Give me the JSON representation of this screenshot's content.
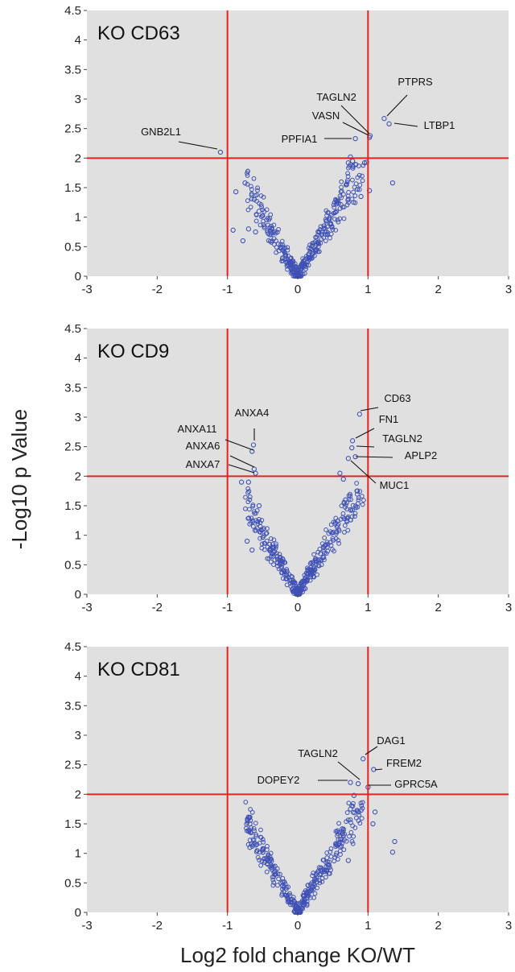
{
  "ylabel": "-Log10 p Value",
  "xlabel": "Log2 fold change KO/WT",
  "chart_data": [
    {
      "type": "scatter",
      "title": "KO CD63",
      "xlim": [
        -3,
        3
      ],
      "ylim": [
        0,
        4.5
      ],
      "x_ticks": [
        "-3",
        "-2",
        "-1",
        "0",
        "1",
        "2",
        "3"
      ],
      "y_ticks": [
        "0",
        "0.5",
        "1",
        "1.5",
        "2",
        "2.5",
        "3",
        "3.5",
        "4",
        "4.5"
      ],
      "thresholds": {
        "x": [
          -1,
          1
        ],
        "y": 2
      },
      "grid": false,
      "colors": {
        "background": "#e0e0e0",
        "points": "#3f51b5",
        "threshold": "#e8231f"
      },
      "points": [
        [
          -1.1,
          2.1
        ],
        [
          0.82,
          2.33
        ],
        [
          1.02,
          2.35
        ],
        [
          1.03,
          2.38
        ],
        [
          1.23,
          2.67
        ],
        [
          1.3,
          2.58
        ],
        [
          0.72,
          1.92
        ],
        [
          0.75,
          2.02
        ],
        [
          0.78,
          1.95
        ],
        [
          0.95,
          1.92
        ],
        [
          0.98,
          1.93
        ],
        [
          1.35,
          1.58
        ],
        [
          1.02,
          1.45
        ],
        [
          0.9,
          1.35
        ],
        [
          -0.75,
          1.58
        ],
        [
          -0.88,
          1.43
        ],
        [
          -0.62,
          1.3
        ],
        [
          -0.55,
          1.1
        ],
        [
          -0.92,
          0.78
        ],
        [
          -0.7,
          0.8
        ],
        [
          -0.78,
          0.6
        ],
        [
          -0.6,
          0.75
        ]
      ],
      "annotations": [
        {
          "label": "GNB2L1",
          "x": -1.1,
          "y": 2.1
        },
        {
          "label": "TAGLN2",
          "x": 1.03,
          "y": 2.38
        },
        {
          "label": "VASN",
          "x": 1.02,
          "y": 2.35
        },
        {
          "label": "PPFIA1",
          "x": 0.82,
          "y": 2.33
        },
        {
          "label": "PTPRS",
          "x": 1.23,
          "y": 2.67
        },
        {
          "label": "LTBP1",
          "x": 1.3,
          "y": 2.58
        }
      ]
    },
    {
      "type": "scatter",
      "title": "KO CD9",
      "xlim": [
        -3,
        3
      ],
      "ylim": [
        0,
        4.5
      ],
      "x_ticks": [
        "-3",
        "-2",
        "-1",
        "0",
        "1",
        "2",
        "3"
      ],
      "y_ticks": [
        "0",
        "0.5",
        "1",
        "1.5",
        "2",
        "2.5",
        "3",
        "3.5",
        "4",
        "4.5"
      ],
      "thresholds": {
        "x": [
          -1,
          1
        ],
        "y": 2
      },
      "grid": false,
      "colors": {
        "background": "#e0e0e0",
        "points": "#3f51b5",
        "threshold": "#e8231f"
      },
      "points": [
        [
          -0.63,
          2.53
        ],
        [
          -0.65,
          2.42
        ],
        [
          -0.62,
          2.12
        ],
        [
          -0.6,
          2.05
        ],
        [
          0.88,
          3.05
        ],
        [
          0.78,
          2.6
        ],
        [
          0.77,
          2.48
        ],
        [
          0.82,
          2.33
        ],
        [
          0.72,
          2.3
        ],
        [
          -0.8,
          1.9
        ],
        [
          -0.7,
          1.9
        ],
        [
          -0.55,
          1.5
        ],
        [
          -0.72,
          0.9
        ],
        [
          -0.65,
          0.75
        ],
        [
          0.6,
          2.05
        ],
        [
          0.65,
          1.95
        ],
        [
          0.68,
          1.6
        ],
        [
          0.7,
          1.25
        ],
        [
          0.85,
          1.75
        ]
      ],
      "annotations": [
        {
          "label": "ANXA4",
          "x": -0.63,
          "y": 2.53
        },
        {
          "label": "ANXA11",
          "x": -0.65,
          "y": 2.42
        },
        {
          "label": "ANXA6",
          "x": -0.62,
          "y": 2.12
        },
        {
          "label": "ANXA7",
          "x": -0.6,
          "y": 2.05
        },
        {
          "label": "CD63",
          "x": 0.88,
          "y": 3.05
        },
        {
          "label": "FN1",
          "x": 0.78,
          "y": 2.6
        },
        {
          "label": "TAGLN2",
          "x": 0.77,
          "y": 2.48
        },
        {
          "label": "APLP2",
          "x": 0.82,
          "y": 2.33
        },
        {
          "label": "MUC1",
          "x": 0.72,
          "y": 2.3
        }
      ]
    },
    {
      "type": "scatter",
      "title": "KO CD81",
      "xlim": [
        -3,
        3
      ],
      "ylim": [
        0,
        4.5
      ],
      "x_ticks": [
        "-3",
        "-2",
        "-1",
        "0",
        "1",
        "2",
        "3"
      ],
      "y_ticks": [
        "0",
        "0.5",
        "1",
        "1.5",
        "2",
        "2.5",
        "3",
        "3.5",
        "4",
        "4.5"
      ],
      "thresholds": {
        "x": [
          -1,
          1
        ],
        "y": 2
      },
      "grid": false,
      "colors": {
        "background": "#e0e0e0",
        "points": "#3f51b5",
        "threshold": "#e8231f"
      },
      "points": [
        [
          0.93,
          2.6
        ],
        [
          1.08,
          2.42
        ],
        [
          0.86,
          2.18
        ],
        [
          1.0,
          2.12
        ],
        [
          0.75,
          2.2
        ],
        [
          0.8,
          1.98
        ],
        [
          0.75,
          1.75
        ],
        [
          1.1,
          1.7
        ],
        [
          1.07,
          1.5
        ],
        [
          1.38,
          1.2
        ],
        [
          1.35,
          1.02
        ],
        [
          -0.68,
          1.5
        ],
        [
          -0.7,
          1.38
        ],
        [
          -0.68,
          1.1
        ],
        [
          0.72,
          0.88
        ],
        [
          0.65,
          1.3
        ]
      ],
      "annotations": [
        {
          "label": "DAG1",
          "x": 0.93,
          "y": 2.6
        },
        {
          "label": "FREM2",
          "x": 1.08,
          "y": 2.42
        },
        {
          "label": "TAGLN2",
          "x": 0.86,
          "y": 2.18
        },
        {
          "label": "DOPEY2",
          "x": 0.75,
          "y": 2.2
        },
        {
          "label": "GPRC5A",
          "x": 1.0,
          "y": 2.12
        }
      ]
    }
  ]
}
